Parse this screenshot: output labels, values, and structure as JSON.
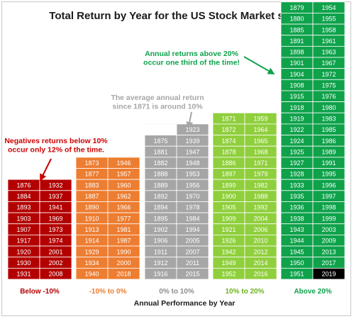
{
  "chart_data": {
    "type": "table",
    "title": "Total Return by Year for the US Stock Market since",
    "xlabel": "Annual Performance by Year",
    "colors": {
      "red": "#b30000",
      "orange": "#ed7d31",
      "gray": "#a6a6a6",
      "light_green": "#8fcf3c",
      "green": "#0fa24b",
      "black": "#000000"
    },
    "categories": [
      {
        "label": "Below -10%",
        "color": "#b30000",
        "label_color": "#b30000",
        "years": [
          [
            "1876",
            "1932"
          ],
          [
            "1884",
            "1937"
          ],
          [
            "1893",
            "1941"
          ],
          [
            "1903",
            "1969"
          ],
          [
            "1907",
            "1973"
          ],
          [
            "1917",
            "1974"
          ],
          [
            "1920",
            "2001"
          ],
          [
            "1930",
            "2002"
          ],
          [
            "1931",
            "2008"
          ]
        ]
      },
      {
        "label": "-10% to 0%",
        "color": "#ed7d31",
        "label_color": "#ed7d31",
        "years": [
          [
            "1873",
            "1946"
          ],
          [
            "1877",
            "1957"
          ],
          [
            "1883",
            "1960"
          ],
          [
            "1887",
            "1962"
          ],
          [
            "1890",
            "1966"
          ],
          [
            "1910",
            "1977"
          ],
          [
            "1913",
            "1981"
          ],
          [
            "1914",
            "1987"
          ],
          [
            "1929",
            "1990"
          ],
          [
            "1934",
            "2000"
          ],
          [
            "1940",
            "2018"
          ]
        ]
      },
      {
        "label": "0% to 10%",
        "color": "#a6a6a6",
        "label_color": "#8c8c8c",
        "years": [
          [
            "",
            "1923"
          ],
          [
            "1875",
            "1939"
          ],
          [
            "1881",
            "1947"
          ],
          [
            "1882",
            "1948"
          ],
          [
            "1888",
            "1953"
          ],
          [
            "1889",
            "1956"
          ],
          [
            "1892",
            "1970"
          ],
          [
            "1894",
            "1978"
          ],
          [
            "1895",
            "1984"
          ],
          [
            "1902",
            "1994"
          ],
          [
            "1906",
            "2005"
          ],
          [
            "1911",
            "2007"
          ],
          [
            "1912",
            "2011"
          ],
          [
            "1916",
            "2015"
          ]
        ]
      },
      {
        "label": "10% to 20%",
        "color": "#8fcf3c",
        "label_color": "#6fb21f",
        "years": [
          [
            "1871",
            "1959"
          ],
          [
            "1872",
            "1964"
          ],
          [
            "1874",
            "1965"
          ],
          [
            "1878",
            "1968"
          ],
          [
            "1886",
            "1971"
          ],
          [
            "1897",
            "1979"
          ],
          [
            "1899",
            "1982"
          ],
          [
            "1900",
            "1988"
          ],
          [
            "1905",
            "1992"
          ],
          [
            "1909",
            "2004"
          ],
          [
            "1921",
            "2006"
          ],
          [
            "1926",
            "2010"
          ],
          [
            "1942",
            "2012"
          ],
          [
            "1949",
            "2014"
          ],
          [
            "1952",
            "2016"
          ]
        ]
      },
      {
        "label": "Above 20%",
        "color": "#0fa24b",
        "label_color": "#0fa24b",
        "years": [
          [
            "1879",
            "1954"
          ],
          [
            "1880",
            "1955"
          ],
          [
            "1885",
            "1958"
          ],
          [
            "1891",
            "1961"
          ],
          [
            "1898",
            "1963"
          ],
          [
            "1901",
            "1967"
          ],
          [
            "1904",
            "1972"
          ],
          [
            "1908",
            "1975"
          ],
          [
            "1915",
            "1976"
          ],
          [
            "1918",
            "1980"
          ],
          [
            "1919",
            "1983"
          ],
          [
            "1922",
            "1985"
          ],
          [
            "1924",
            "1986"
          ],
          [
            "1925",
            "1989"
          ],
          [
            "1927",
            "1991"
          ],
          [
            "1928",
            "1995"
          ],
          [
            "1933",
            "1996"
          ],
          [
            "1935",
            "1997"
          ],
          [
            "1936",
            "1998"
          ],
          [
            "1938",
            "1999"
          ],
          [
            "1943",
            "2003"
          ],
          [
            "1944",
            "2009"
          ],
          [
            "1945",
            "2013"
          ],
          [
            "1950",
            "2017"
          ],
          [
            "1951",
            "2019"
          ]
        ],
        "highlight": "2019"
      }
    ],
    "annotations": [
      {
        "id": "negatives",
        "lines": [
          "Negatives returns below 10%",
          "occur only 12% of the time."
        ],
        "color": "#cc0000"
      },
      {
        "id": "average",
        "lines": [
          "The average annual return",
          "since 1871 is around 10%"
        ],
        "color": "#a6a6a6"
      },
      {
        "id": "above",
        "lines": [
          "Annual returns above 20%",
          "occur one third of the time!"
        ],
        "color": "#0fa24b"
      }
    ]
  }
}
